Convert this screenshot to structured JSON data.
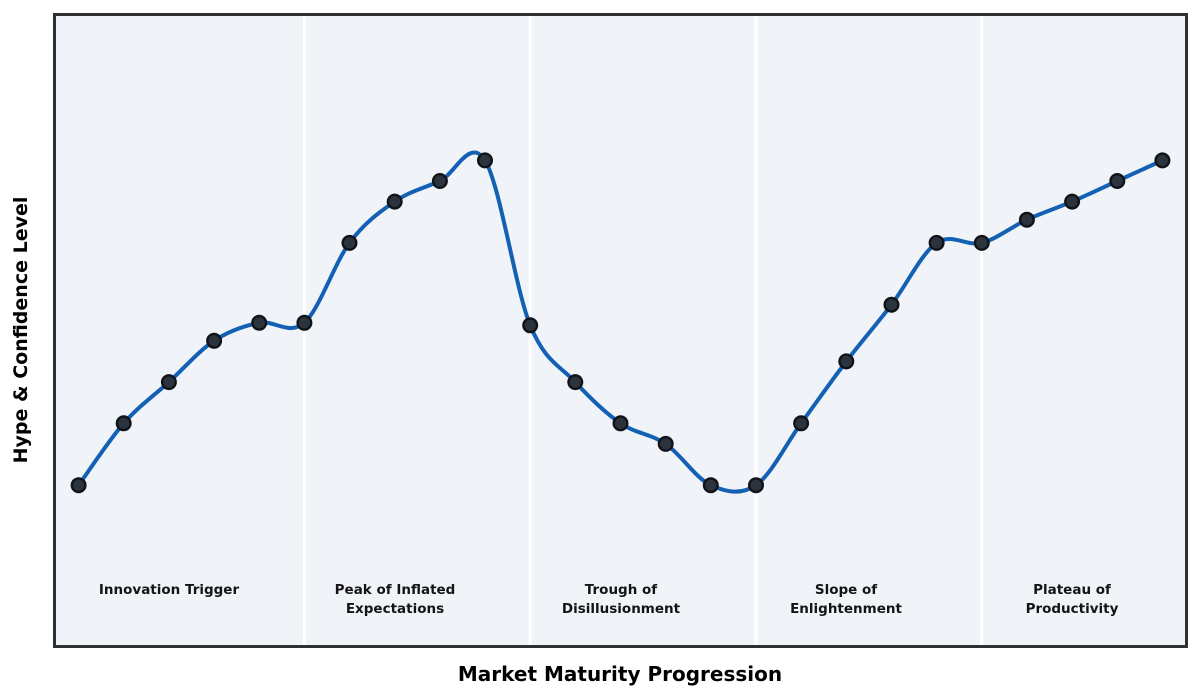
{
  "figure": {
    "page_background": "#ffffff",
    "plot_background": "#f0f4f8",
    "border_color": "#2e3134",
    "separator_color": "#ffffff"
  },
  "axes": {
    "x_label": "Market Maturity Progression",
    "y_label": "Hype & Confidence Level"
  },
  "chart_data": {
    "type": "line",
    "title": "",
    "xlabel": "Market Maturity Progression",
    "ylabel": "Hype & Confidence Level",
    "grid": false,
    "legend": false,
    "smooth": true,
    "x": [
      0,
      1,
      2,
      3,
      4,
      5,
      6,
      7,
      8,
      9,
      10,
      11,
      12,
      13,
      14,
      15,
      16,
      17,
      18,
      19,
      20,
      21,
      22,
      23,
      24
    ],
    "y": [
      25,
      37,
      45,
      53,
      56.5,
      56.5,
      72,
      80,
      84,
      88,
      56,
      45,
      37,
      33,
      25,
      25,
      37,
      49,
      60,
      72,
      72,
      76.5,
      80,
      84,
      88
    ],
    "xlim": [
      -0.5,
      24.5
    ],
    "ylim": [
      -6,
      116
    ],
    "line_color": "#1360b4",
    "line_width": 4,
    "marker_fill": "#2b333c",
    "marker_edge": "#101419",
    "marker_radius": 6.8,
    "phases": [
      {
        "label": "Innovation Trigger",
        "x_start": -0.5,
        "x_end": 5,
        "label_x": 2
      },
      {
        "label": "Peak of Inflated\nExpectations",
        "x_start": 5,
        "x_end": 10,
        "label_x": 7
      },
      {
        "label": "Trough of\nDisillusionment",
        "x_start": 10,
        "x_end": 15,
        "label_x": 12
      },
      {
        "label": "Slope of\nEnlightenment",
        "x_start": 15,
        "x_end": 20,
        "label_x": 17
      },
      {
        "label": "Plateau of\nProductivity",
        "x_start": 20,
        "x_end": 24.5,
        "label_x": 22
      }
    ]
  }
}
